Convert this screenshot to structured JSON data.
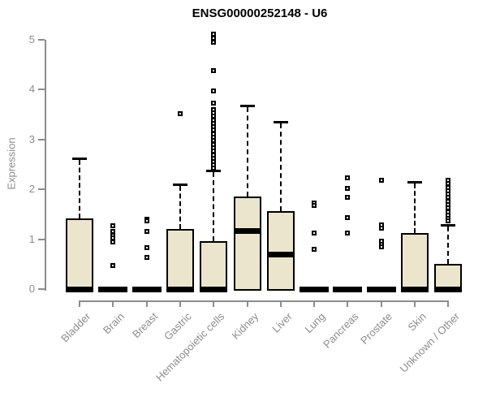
{
  "chart_data": {
    "type": "boxplot",
    "title": "ENSG00000252148 - U6",
    "ylabel": "Expression",
    "xlabel": "",
    "ylim": [
      0,
      5
    ],
    "yticks": [
      0,
      1,
      2,
      3,
      4,
      5
    ],
    "grid": false,
    "legend": "none",
    "colors": {
      "box_fill": "#EBE5CD",
      "box_border": "#000000",
      "axis": "#8c8c8c",
      "labels": "#8c8c8c",
      "title": "#000000"
    },
    "categories": [
      "Bladder",
      "Brain",
      "Breast",
      "Gastric",
      "Hematopoietic cells",
      "Kidney",
      "Liver",
      "Lung",
      "Pancreas",
      "Prostate",
      "Skin",
      "Unknown / Other"
    ],
    "series": [
      {
        "name": "Bladder",
        "whisker_low": 0,
        "q1": 0,
        "median": 0,
        "q3": 1.42,
        "whisker_high": 2.62,
        "outliers": []
      },
      {
        "name": "Brain",
        "whisker_low": 0,
        "q1": 0,
        "median": 0,
        "q3": 0,
        "whisker_high": 0,
        "outliers": [
          1.27,
          1.15,
          1.08,
          1.02,
          0.95,
          0.47
        ]
      },
      {
        "name": "Breast",
        "whisker_low": 0,
        "q1": 0,
        "median": 0,
        "q3": 0,
        "whisker_high": 0,
        "outliers": [
          1.4,
          1.36,
          1.16,
          0.83,
          0.64
        ]
      },
      {
        "name": "Gastric",
        "whisker_low": 0,
        "q1": 0,
        "median": 0,
        "q3": 1.21,
        "whisker_high": 2.1,
        "outliers": [
          3.52
        ]
      },
      {
        "name": "Hematopoietic cells",
        "whisker_low": 0,
        "q1": 0,
        "median": 0,
        "q3": 0.96,
        "whisker_high": 2.38,
        "outliers": [
          5.1,
          5.02,
          4.94,
          4.38,
          3.97,
          3.73,
          3.6,
          3.53,
          3.46,
          3.39,
          3.32,
          3.25,
          3.18,
          3.11,
          3.04,
          2.97,
          2.9,
          2.83,
          2.76,
          2.69,
          2.62,
          2.55,
          2.48,
          2.42
        ]
      },
      {
        "name": "Kidney",
        "whisker_low": 0,
        "q1": 0,
        "median": 1.17,
        "q3": 1.86,
        "whisker_high": 3.68,
        "outliers": []
      },
      {
        "name": "Liver",
        "whisker_low": 0,
        "q1": 0,
        "median": 0.7,
        "q3": 1.56,
        "whisker_high": 3.35,
        "outliers": []
      },
      {
        "name": "Lung",
        "whisker_low": 0,
        "q1": 0,
        "median": 0,
        "q3": 0,
        "whisker_high": 0,
        "outliers": [
          1.72,
          1.67,
          1.13,
          0.8
        ]
      },
      {
        "name": "Pancreas",
        "whisker_low": 0,
        "q1": 0,
        "median": 0,
        "q3": 0,
        "whisker_high": 0,
        "outliers": [
          2.23,
          2.02,
          1.83,
          1.43,
          1.13
        ]
      },
      {
        "name": "Prostate",
        "whisker_low": 0,
        "q1": 0,
        "median": 0,
        "q3": 0,
        "whisker_high": 0,
        "outliers": [
          2.18,
          1.29,
          1.22,
          0.96,
          0.9,
          0.85
        ]
      },
      {
        "name": "Skin",
        "whisker_low": 0,
        "q1": 0,
        "median": 0,
        "q3": 1.12,
        "whisker_high": 2.15,
        "outliers": []
      },
      {
        "name": "Unknown / Other",
        "whisker_low": 0,
        "q1": 0,
        "median": 0,
        "q3": 0.5,
        "whisker_high": 1.29,
        "outliers": [
          2.18,
          2.11,
          2.04,
          1.97,
          1.9,
          1.83,
          1.76,
          1.69,
          1.62,
          1.55,
          1.48,
          1.41,
          1.36
        ]
      }
    ]
  }
}
